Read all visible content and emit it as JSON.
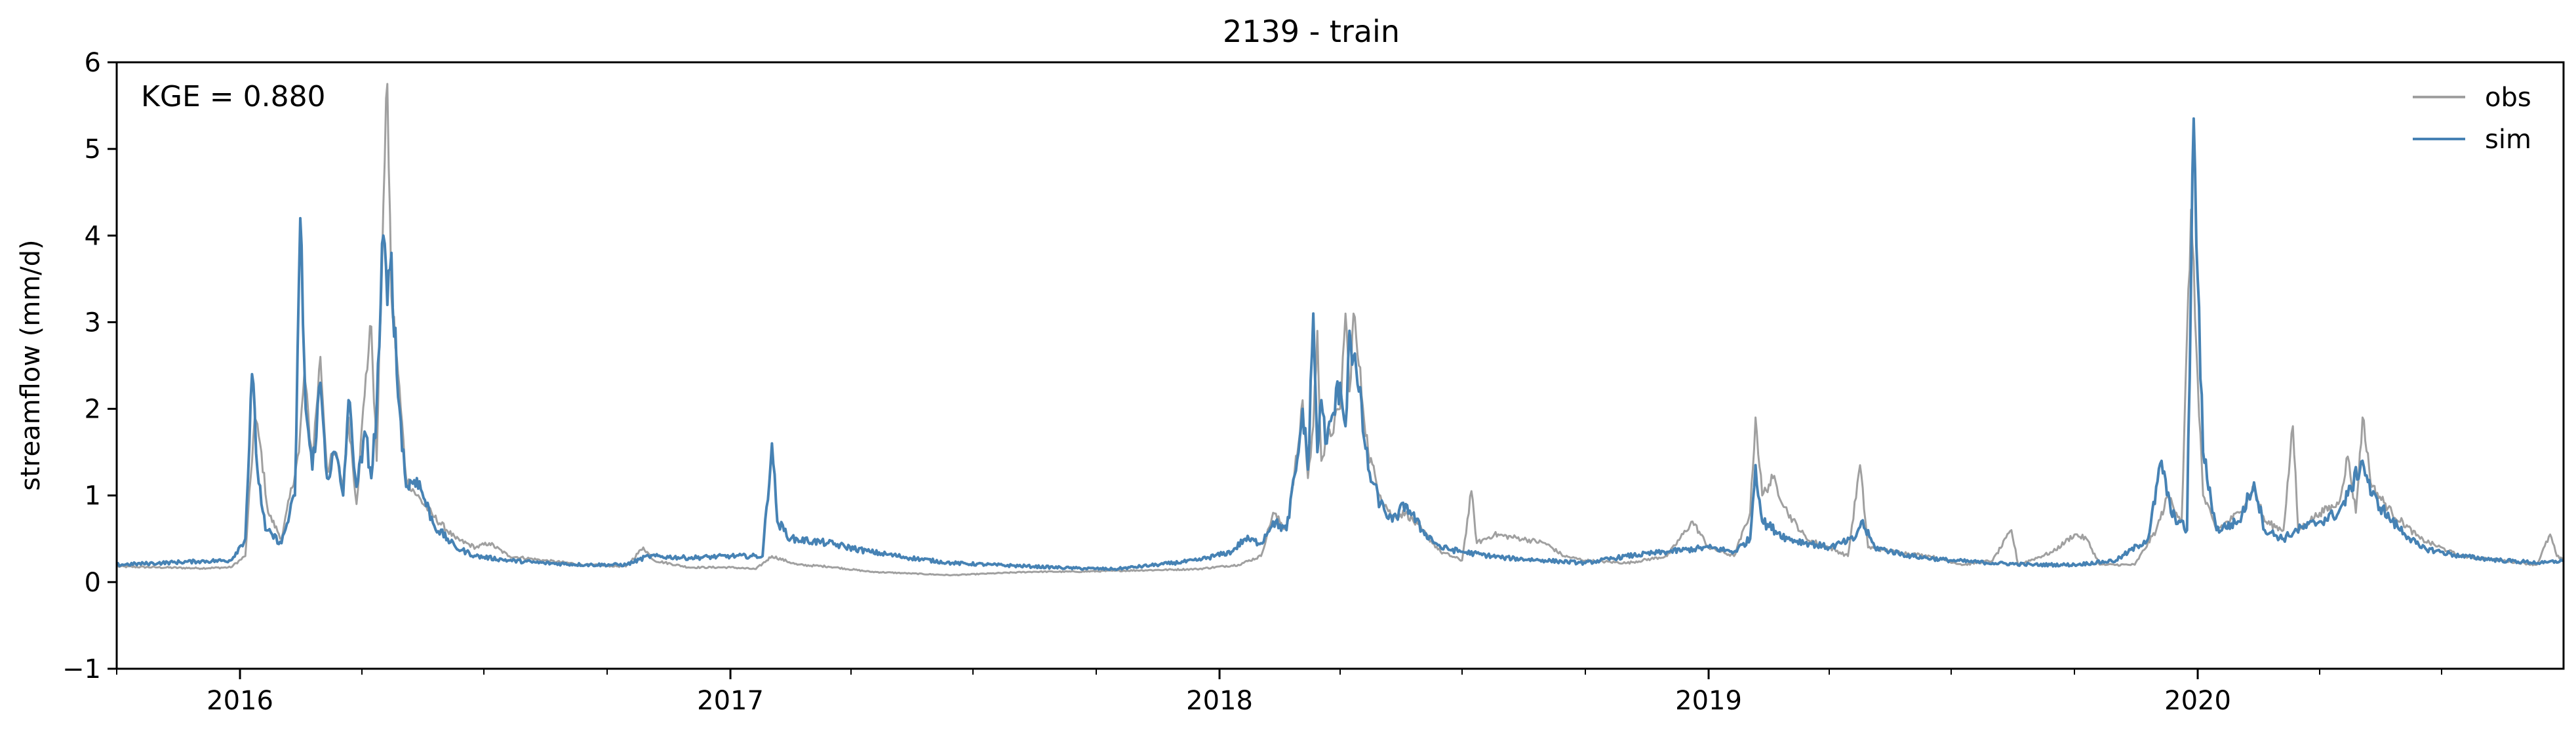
{
  "chart_data": {
    "type": "line",
    "title": "2139 - train",
    "xlabel": "",
    "ylabel": "streamflow (mm/d)",
    "xlim": [
      "2015-10-01",
      "2020-09-30"
    ],
    "ylim": [
      -1,
      6
    ],
    "yticks": [
      -1,
      0,
      1,
      2,
      3,
      4,
      5,
      6
    ],
    "ytick_labels": [
      "−1",
      "0",
      "1",
      "2",
      "3",
      "4",
      "5",
      "6"
    ],
    "xticks": [
      "2016-01-01",
      "2017-01-01",
      "2018-01-01",
      "2019-01-01",
      "2020-01-01"
    ],
    "xtick_labels": [
      "2016",
      "2017",
      "2018",
      "2019",
      "2020"
    ],
    "x_minor_ticks": "quarterly",
    "grid": false,
    "legend": {
      "placement": "top-right",
      "entries": [
        "obs",
        "sim"
      ]
    },
    "annotation": "KGE = 0.880",
    "colors": {
      "obs": "#a0a0a0",
      "sim": "#4682b4"
    },
    "series": [
      {
        "name": "obs",
        "color": "#a0a0a0",
        "points": [
          [
            "2015-10-01",
            0.18
          ],
          [
            "2015-11-01",
            0.17
          ],
          [
            "2015-12-01",
            0.16
          ],
          [
            "2015-12-25",
            0.17
          ],
          [
            "2016-01-05",
            0.3
          ],
          [
            "2016-01-12",
            1.9
          ],
          [
            "2016-01-16",
            1.6
          ],
          [
            "2016-01-22",
            0.8
          ],
          [
            "2016-02-01",
            0.5
          ],
          [
            "2016-02-14",
            1.5
          ],
          [
            "2016-02-18",
            2.4
          ],
          [
            "2016-02-24",
            1.4
          ],
          [
            "2016-03-01",
            2.6
          ],
          [
            "2016-03-06",
            1.3
          ],
          [
            "2016-03-12",
            1.5
          ],
          [
            "2016-03-18",
            1.1
          ],
          [
            "2016-03-22",
            1.9
          ],
          [
            "2016-03-28",
            0.9
          ],
          [
            "2016-04-04",
            2.4
          ],
          [
            "2016-04-08",
            2.95
          ],
          [
            "2016-04-12",
            1.4
          ],
          [
            "2016-04-17",
            4.35
          ],
          [
            "2016-04-20",
            5.75
          ],
          [
            "2016-04-23",
            3.3
          ],
          [
            "2016-04-27",
            2.6
          ],
          [
            "2016-05-04",
            1.2
          ],
          [
            "2016-05-12",
            1.0
          ],
          [
            "2016-05-25",
            0.75
          ],
          [
            "2016-06-10",
            0.5
          ],
          [
            "2016-06-25",
            0.4
          ],
          [
            "2016-07-05",
            0.45
          ],
          [
            "2016-07-20",
            0.3
          ],
          [
            "2016-08-15",
            0.25
          ],
          [
            "2016-09-15",
            0.2
          ],
          [
            "2016-10-15",
            0.18
          ],
          [
            "2016-10-28",
            0.4
          ],
          [
            "2016-11-05",
            0.25
          ],
          [
            "2016-12-01",
            0.17
          ],
          [
            "2017-01-01",
            0.17
          ],
          [
            "2017-01-20",
            0.15
          ],
          [
            "2017-02-01",
            0.3
          ],
          [
            "2017-02-20",
            0.2
          ],
          [
            "2017-03-15",
            0.18
          ],
          [
            "2017-04-15",
            0.12
          ],
          [
            "2017-05-15",
            0.1
          ],
          [
            "2017-06-15",
            0.08
          ],
          [
            "2017-07-15",
            0.1
          ],
          [
            "2017-08-15",
            0.12
          ],
          [
            "2017-09-15",
            0.12
          ],
          [
            "2017-10-15",
            0.13
          ],
          [
            "2017-11-15",
            0.14
          ],
          [
            "2017-12-15",
            0.15
          ],
          [
            "2018-01-15",
            0.2
          ],
          [
            "2018-02-01",
            0.3
          ],
          [
            "2018-02-10",
            0.8
          ],
          [
            "2018-02-20",
            0.6
          ],
          [
            "2018-03-01",
            1.6
          ],
          [
            "2018-03-04",
            2.1
          ],
          [
            "2018-03-08",
            1.2
          ],
          [
            "2018-03-12",
            1.8
          ],
          [
            "2018-03-15",
            2.9
          ],
          [
            "2018-03-18",
            1.4
          ],
          [
            "2018-03-22",
            1.6
          ],
          [
            "2018-04-01",
            2.0
          ],
          [
            "2018-04-05",
            3.1
          ],
          [
            "2018-04-08",
            2.2
          ],
          [
            "2018-04-11",
            3.1
          ],
          [
            "2018-04-15",
            2.5
          ],
          [
            "2018-04-22",
            1.5
          ],
          [
            "2018-05-01",
            1.0
          ],
          [
            "2018-05-10",
            0.75
          ],
          [
            "2018-05-20",
            0.8
          ],
          [
            "2018-06-01",
            0.6
          ],
          [
            "2018-06-15",
            0.35
          ],
          [
            "2018-07-01",
            0.25
          ],
          [
            "2018-07-08",
            1.05
          ],
          [
            "2018-07-12",
            0.45
          ],
          [
            "2018-07-25",
            0.55
          ],
          [
            "2018-08-15",
            0.5
          ],
          [
            "2018-09-01",
            0.45
          ],
          [
            "2018-09-15",
            0.3
          ],
          [
            "2018-10-01",
            0.25
          ],
          [
            "2018-11-01",
            0.22
          ],
          [
            "2018-12-01",
            0.3
          ],
          [
            "2018-12-20",
            0.7
          ],
          [
            "2019-01-01",
            0.4
          ],
          [
            "2019-01-20",
            0.3
          ],
          [
            "2019-02-01",
            0.8
          ],
          [
            "2019-02-05",
            1.9
          ],
          [
            "2019-02-10",
            1.0
          ],
          [
            "2019-02-18",
            1.2
          ],
          [
            "2019-03-01",
            0.8
          ],
          [
            "2019-03-15",
            0.5
          ],
          [
            "2019-04-01",
            0.4
          ],
          [
            "2019-04-15",
            0.3
          ],
          [
            "2019-04-24",
            1.35
          ],
          [
            "2019-04-30",
            0.4
          ],
          [
            "2019-05-20",
            0.35
          ],
          [
            "2019-06-15",
            0.3
          ],
          [
            "2019-07-10",
            0.2
          ],
          [
            "2019-08-01",
            0.25
          ],
          [
            "2019-08-15",
            0.6
          ],
          [
            "2019-08-20",
            0.2
          ],
          [
            "2019-09-15",
            0.35
          ],
          [
            "2019-10-01",
            0.55
          ],
          [
            "2019-10-10",
            0.5
          ],
          [
            "2019-10-20",
            0.2
          ],
          [
            "2019-11-15",
            0.2
          ],
          [
            "2019-12-01",
            0.6
          ],
          [
            "2019-12-10",
            1.0
          ],
          [
            "2019-12-20",
            0.7
          ],
          [
            "2019-12-27",
            4.3
          ],
          [
            "2019-12-31",
            2.7
          ],
          [
            "2020-01-05",
            1.0
          ],
          [
            "2020-01-15",
            0.6
          ],
          [
            "2020-02-01",
            0.8
          ],
          [
            "2020-02-12",
            1.1
          ],
          [
            "2020-02-20",
            0.7
          ],
          [
            "2020-03-05",
            0.6
          ],
          [
            "2020-03-12",
            1.8
          ],
          [
            "2020-03-16",
            0.6
          ],
          [
            "2020-04-01",
            0.8
          ],
          [
            "2020-04-15",
            0.9
          ],
          [
            "2020-04-22",
            1.45
          ],
          [
            "2020-04-28",
            0.8
          ],
          [
            "2020-05-03",
            1.9
          ],
          [
            "2020-05-10",
            1.1
          ],
          [
            "2020-05-25",
            0.8
          ],
          [
            "2020-06-15",
            0.5
          ],
          [
            "2020-07-15",
            0.3
          ],
          [
            "2020-08-15",
            0.25
          ],
          [
            "2020-09-10",
            0.2
          ],
          [
            "2020-09-20",
            0.55
          ],
          [
            "2020-09-25",
            0.3
          ],
          [
            "2020-09-30",
            0.25
          ]
        ]
      },
      {
        "name": "sim",
        "color": "#4682b4",
        "points": [
          [
            "2015-10-01",
            0.2
          ],
          [
            "2015-11-01",
            0.22
          ],
          [
            "2015-12-01",
            0.24
          ],
          [
            "2015-12-25",
            0.25
          ],
          [
            "2016-01-05",
            0.5
          ],
          [
            "2016-01-10",
            2.4
          ],
          [
            "2016-01-14",
            1.3
          ],
          [
            "2016-01-20",
            0.6
          ],
          [
            "2016-02-01",
            0.45
          ],
          [
            "2016-02-11",
            1.0
          ],
          [
            "2016-02-15",
            4.2
          ],
          [
            "2016-02-19",
            2.0
          ],
          [
            "2016-02-24",
            1.3
          ],
          [
            "2016-03-01",
            2.3
          ],
          [
            "2016-03-06",
            1.2
          ],
          [
            "2016-03-12",
            1.5
          ],
          [
            "2016-03-18",
            1.0
          ],
          [
            "2016-03-22",
            2.1
          ],
          [
            "2016-03-28",
            1.1
          ],
          [
            "2016-04-04",
            1.7
          ],
          [
            "2016-04-08",
            1.2
          ],
          [
            "2016-04-12",
            2.0
          ],
          [
            "2016-04-17",
            4.0
          ],
          [
            "2016-04-20",
            3.2
          ],
          [
            "2016-04-23",
            3.8
          ],
          [
            "2016-04-27",
            2.4
          ],
          [
            "2016-05-04",
            1.1
          ],
          [
            "2016-05-12",
            1.2
          ],
          [
            "2016-05-25",
            0.65
          ],
          [
            "2016-06-10",
            0.4
          ],
          [
            "2016-06-25",
            0.3
          ],
          [
            "2016-07-20",
            0.25
          ],
          [
            "2016-08-15",
            0.22
          ],
          [
            "2016-09-15",
            0.2
          ],
          [
            "2016-10-15",
            0.2
          ],
          [
            "2016-11-01",
            0.3
          ],
          [
            "2016-12-01",
            0.28
          ],
          [
            "2017-01-01",
            0.3
          ],
          [
            "2017-01-25",
            0.3
          ],
          [
            "2017-02-01",
            1.6
          ],
          [
            "2017-02-05",
            0.7
          ],
          [
            "2017-02-15",
            0.5
          ],
          [
            "2017-03-15",
            0.45
          ],
          [
            "2017-04-15",
            0.35
          ],
          [
            "2017-05-15",
            0.28
          ],
          [
            "2017-06-15",
            0.22
          ],
          [
            "2017-07-15",
            0.2
          ],
          [
            "2017-08-15",
            0.18
          ],
          [
            "2017-09-15",
            0.16
          ],
          [
            "2017-10-15",
            0.15
          ],
          [
            "2017-11-15",
            0.2
          ],
          [
            "2017-12-15",
            0.25
          ],
          [
            "2018-01-10",
            0.35
          ],
          [
            "2018-01-20",
            0.5
          ],
          [
            "2018-02-01",
            0.45
          ],
          [
            "2018-02-10",
            0.7
          ],
          [
            "2018-02-20",
            0.6
          ],
          [
            "2018-03-01",
            1.5
          ],
          [
            "2018-03-04",
            2.0
          ],
          [
            "2018-03-08",
            1.3
          ],
          [
            "2018-03-12",
            3.1
          ],
          [
            "2018-03-15",
            1.5
          ],
          [
            "2018-03-18",
            2.1
          ],
          [
            "2018-03-22",
            1.6
          ],
          [
            "2018-04-01",
            2.3
          ],
          [
            "2018-04-05",
            1.8
          ],
          [
            "2018-04-08",
            2.9
          ],
          [
            "2018-04-11",
            2.6
          ],
          [
            "2018-04-15",
            2.2
          ],
          [
            "2018-04-22",
            1.3
          ],
          [
            "2018-05-01",
            0.9
          ],
          [
            "2018-05-10",
            0.7
          ],
          [
            "2018-05-20",
            0.9
          ],
          [
            "2018-06-01",
            0.6
          ],
          [
            "2018-06-15",
            0.4
          ],
          [
            "2018-07-01",
            0.35
          ],
          [
            "2018-08-01",
            0.28
          ],
          [
            "2018-09-01",
            0.25
          ],
          [
            "2018-10-01",
            0.22
          ],
          [
            "2018-11-01",
            0.3
          ],
          [
            "2018-12-01",
            0.35
          ],
          [
            "2019-01-01",
            0.4
          ],
          [
            "2019-01-20",
            0.35
          ],
          [
            "2019-02-01",
            0.5
          ],
          [
            "2019-02-05",
            1.35
          ],
          [
            "2019-02-10",
            0.7
          ],
          [
            "2019-03-01",
            0.5
          ],
          [
            "2019-04-01",
            0.4
          ],
          [
            "2019-04-20",
            0.5
          ],
          [
            "2019-04-25",
            0.7
          ],
          [
            "2019-05-05",
            0.4
          ],
          [
            "2019-06-01",
            0.3
          ],
          [
            "2019-07-01",
            0.25
          ],
          [
            "2019-08-01",
            0.22
          ],
          [
            "2019-09-01",
            0.2
          ],
          [
            "2019-10-01",
            0.2
          ],
          [
            "2019-11-01",
            0.25
          ],
          [
            "2019-11-25",
            0.5
          ],
          [
            "2019-12-05",
            1.4
          ],
          [
            "2019-12-12",
            0.8
          ],
          [
            "2019-12-24",
            0.6
          ],
          [
            "2019-12-29",
            5.35
          ],
          [
            "2020-01-01",
            3.5
          ],
          [
            "2020-01-05",
            1.5
          ],
          [
            "2020-01-15",
            0.6
          ],
          [
            "2020-02-01",
            0.7
          ],
          [
            "2020-02-12",
            1.15
          ],
          [
            "2020-02-20",
            0.6
          ],
          [
            "2020-03-05",
            0.5
          ],
          [
            "2020-03-15",
            0.6
          ],
          [
            "2020-04-01",
            0.7
          ],
          [
            "2020-04-15",
            0.8
          ],
          [
            "2020-04-22",
            1.0
          ],
          [
            "2020-05-03",
            1.4
          ],
          [
            "2020-05-10",
            1.0
          ],
          [
            "2020-05-25",
            0.7
          ],
          [
            "2020-06-15",
            0.4
          ],
          [
            "2020-07-15",
            0.3
          ],
          [
            "2020-08-15",
            0.25
          ],
          [
            "2020-09-15",
            0.22
          ],
          [
            "2020-09-30",
            0.25
          ]
        ]
      }
    ]
  }
}
